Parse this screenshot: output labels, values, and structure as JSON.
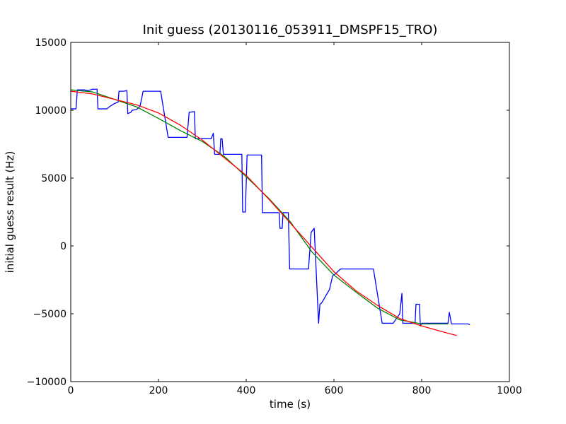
{
  "chart_data": {
    "type": "line",
    "title": "Init guess (20130116_053911_DMSPF15_TRO)",
    "xlabel": "time (s)",
    "ylabel": "initial guess result (Hz)",
    "xlim": [
      0,
      1000
    ],
    "ylim": [
      -10000,
      15000
    ],
    "x_ticks": [
      0,
      200,
      400,
      600,
      800,
      1000
    ],
    "y_ticks": [
      -10000,
      -5000,
      0,
      5000,
      10000,
      15000
    ],
    "grid": false,
    "legend": "none",
    "series": [
      {
        "color": "#0000ff",
        "points": [
          [
            0,
            10100
          ],
          [
            12,
            10100
          ],
          [
            15,
            11500
          ],
          [
            30,
            11500
          ],
          [
            40,
            11450
          ],
          [
            50,
            11550
          ],
          [
            60,
            11550
          ],
          [
            62,
            10100
          ],
          [
            82,
            10100
          ],
          [
            90,
            10300
          ],
          [
            100,
            10500
          ],
          [
            108,
            10600
          ],
          [
            110,
            11400
          ],
          [
            120,
            11400
          ],
          [
            128,
            11450
          ],
          [
            130,
            9750
          ],
          [
            137,
            9850
          ],
          [
            140,
            10000
          ],
          [
            150,
            10050
          ],
          [
            158,
            10300
          ],
          [
            165,
            11400
          ],
          [
            205,
            11400
          ],
          [
            222,
            8000
          ],
          [
            265,
            8000
          ],
          [
            270,
            9850
          ],
          [
            282,
            9900
          ],
          [
            284,
            7900
          ],
          [
            300,
            7900
          ],
          [
            320,
            7900
          ],
          [
            325,
            8300
          ],
          [
            328,
            6750
          ],
          [
            340,
            6750
          ],
          [
            342,
            7900
          ],
          [
            345,
            7900
          ],
          [
            348,
            6750
          ],
          [
            390,
            6750
          ],
          [
            392,
            2500
          ],
          [
            398,
            2500
          ],
          [
            402,
            6700
          ],
          [
            435,
            6700
          ],
          [
            437,
            2450
          ],
          [
            475,
            2450
          ],
          [
            477,
            1300
          ],
          [
            482,
            1300
          ],
          [
            484,
            2450
          ],
          [
            496,
            2450
          ],
          [
            499,
            -1700
          ],
          [
            542,
            -1700
          ],
          [
            548,
            1000
          ],
          [
            555,
            1300
          ],
          [
            565,
            -5700
          ],
          [
            568,
            -4300
          ],
          [
            572,
            -4200
          ],
          [
            590,
            -3200
          ],
          [
            597,
            -2200
          ],
          [
            602,
            -2100
          ],
          [
            615,
            -1700
          ],
          [
            690,
            -1700
          ],
          [
            710,
            -5700
          ],
          [
            735,
            -5700
          ],
          [
            750,
            -5000
          ],
          [
            755,
            -3500
          ],
          [
            757,
            -5700
          ],
          [
            785,
            -5700
          ],
          [
            787,
            -4300
          ],
          [
            795,
            -4300
          ],
          [
            797,
            -5900
          ],
          [
            800,
            -5700
          ],
          [
            860,
            -5700
          ],
          [
            863,
            -4900
          ],
          [
            868,
            -5750
          ],
          [
            905,
            -5750
          ],
          [
            910,
            -5800
          ]
        ]
      },
      {
        "color": "#008000",
        "points": [
          [
            0,
            11500
          ],
          [
            50,
            11350
          ],
          [
            100,
            10800
          ],
          [
            150,
            10250
          ],
          [
            200,
            9400
          ],
          [
            250,
            8500
          ],
          [
            300,
            7700
          ],
          [
            350,
            6600
          ],
          [
            400,
            5100
          ],
          [
            450,
            3550
          ],
          [
            500,
            1800
          ],
          [
            550,
            -450
          ],
          [
            600,
            -2150
          ],
          [
            650,
            -3400
          ],
          [
            700,
            -4600
          ],
          [
            750,
            -5450
          ],
          [
            800,
            -5750
          ],
          [
            860,
            -5750
          ]
        ]
      },
      {
        "color": "#ff0000",
        "points": [
          [
            0,
            11400
          ],
          [
            50,
            11200
          ],
          [
            100,
            10800
          ],
          [
            150,
            10400
          ],
          [
            200,
            9800
          ],
          [
            250,
            8900
          ],
          [
            300,
            7800
          ],
          [
            350,
            6500
          ],
          [
            400,
            5200
          ],
          [
            450,
            3500
          ],
          [
            500,
            1700
          ],
          [
            550,
            -100
          ],
          [
            600,
            -1900
          ],
          [
            650,
            -3300
          ],
          [
            700,
            -4400
          ],
          [
            750,
            -5350
          ],
          [
            800,
            -5900
          ],
          [
            850,
            -6350
          ],
          [
            880,
            -6600
          ]
        ]
      }
    ]
  }
}
